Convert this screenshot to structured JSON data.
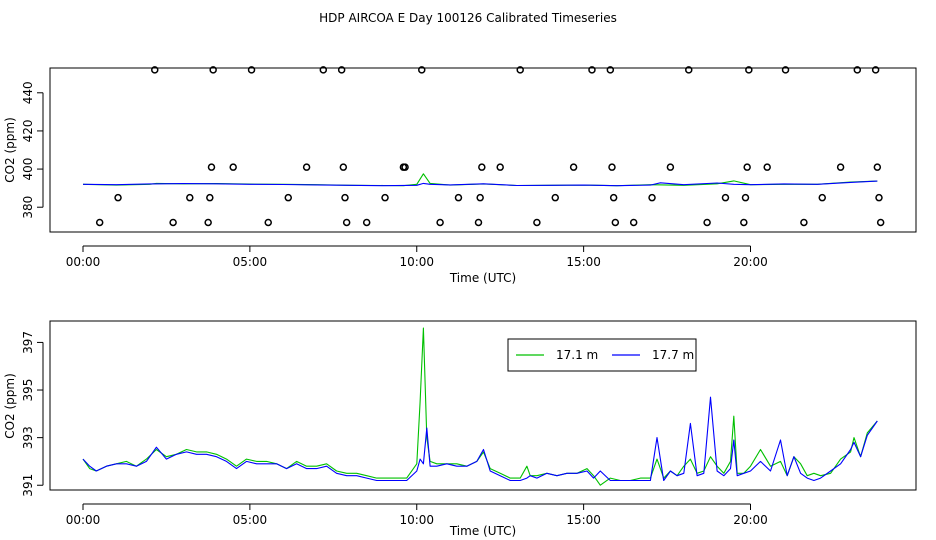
{
  "chart_data": [
    {
      "type": "line",
      "title": "HDP AIRCOA E  Day 100126  Calibrated Timeseries",
      "xlabel": "Time (UTC)",
      "ylabel": "CO2 (ppm)",
      "xlim": [
        0,
        24
      ],
      "ylim": [
        367,
        453
      ],
      "x_ticks": [
        0,
        5,
        10,
        15,
        20
      ],
      "x_tick_labels": [
        "00:00",
        "05:00",
        "10:00",
        "15:00",
        "20:00"
      ],
      "y_ticks": [
        380,
        400,
        420,
        440
      ],
      "y_tick_labels": [
        "380",
        "400",
        "420",
        "440"
      ],
      "grid": false,
      "legend": "none",
      "series": [
        {
          "color": "#00c000",
          "x": [
            0,
            1,
            2,
            2.2,
            3,
            4,
            5,
            6,
            7,
            8,
            9,
            9.6,
            10,
            10.2,
            10.4,
            11,
            12,
            13,
            14,
            15,
            16,
            17,
            18,
            19,
            19.5,
            20,
            21,
            22,
            23,
            23.8
          ],
          "y": [
            392,
            391.6,
            392,
            392.5,
            392.3,
            392.4,
            392.1,
            392,
            391.8,
            391.5,
            391.4,
            391.3,
            392,
            397.5,
            392.5,
            391.6,
            392.2,
            391.4,
            391.5,
            391.6,
            391.3,
            391.8,
            391.5,
            392.3,
            393.8,
            391.8,
            392,
            392,
            393.2,
            393.7
          ]
        },
        {
          "color": "#0000ff",
          "x": [
            0,
            1,
            2,
            3,
            4,
            5,
            6,
            7,
            8,
            9,
            10,
            10.2,
            10.4,
            11,
            12,
            13,
            14,
            15,
            16,
            17,
            17.3,
            18,
            19,
            19.5,
            20,
            21,
            22,
            23,
            23.8
          ],
          "y": [
            392,
            391.8,
            392.2,
            392.4,
            392.3,
            392,
            391.9,
            391.7,
            391.5,
            391.3,
            391.5,
            392.5,
            392,
            391.7,
            392.3,
            391.4,
            391.5,
            391.6,
            391.3,
            391.6,
            392.8,
            391.8,
            392.7,
            392,
            391.8,
            392.2,
            392,
            393,
            393.7
          ]
        }
      ],
      "points": {
        "x": [
          0.5,
          1.05,
          2.15,
          2.7,
          3.2,
          3.75,
          3.8,
          3.85,
          3.9,
          4.5,
          5.05,
          5.55,
          6.15,
          6.7,
          7.2,
          7.75,
          7.8,
          7.85,
          7.9,
          8.5,
          9.05,
          9.6,
          9.65,
          10.15,
          10.7,
          11.25,
          11.85,
          11.9,
          11.95,
          12.5,
          13.1,
          13.6,
          14.15,
          14.7,
          15.25,
          15.8,
          15.85,
          15.9,
          15.95,
          16.5,
          17.05,
          17.6,
          18.15,
          18.7,
          19.25,
          19.8,
          19.85,
          19.9,
          19.95,
          20.5,
          21.05,
          21.6,
          22.15,
          22.7,
          23.2,
          23.75,
          23.8,
          23.85,
          23.9
        ],
        "y": [
          372,
          385,
          452,
          372,
          385,
          372,
          385,
          401,
          452,
          401,
          452,
          372,
          385,
          401,
          452,
          452,
          401,
          385,
          372,
          372,
          385,
          401,
          401,
          452,
          372,
          385,
          372,
          385,
          401,
          401,
          452,
          372,
          385,
          401,
          452,
          452,
          401,
          385,
          372,
          372,
          385,
          401,
          452,
          372,
          385,
          372,
          385,
          401,
          452,
          401,
          452,
          372,
          385,
          401,
          452,
          452,
          401,
          385,
          372
        ]
      }
    },
    {
      "type": "line",
      "xlabel": "Time (UTC)",
      "ylabel": "CO2 (ppm)",
      "xlim": [
        0,
        24
      ],
      "ylim": [
        390.8,
        397.9
      ],
      "x_ticks": [
        0,
        5,
        10,
        15,
        20
      ],
      "x_tick_labels": [
        "00:00",
        "05:00",
        "10:00",
        "15:00",
        "20:00"
      ],
      "y_ticks": [
        391,
        393,
        395,
        397
      ],
      "y_tick_labels": [
        "391",
        "393",
        "395",
        "397"
      ],
      "grid": false,
      "legend": "top-center",
      "series": [
        {
          "name": "17.1 m",
          "color": "#00c000",
          "x": [
            0,
            0.2,
            0.4,
            0.7,
            1,
            1.3,
            1.6,
            1.9,
            2.2,
            2.5,
            2.8,
            3.1,
            3.4,
            3.7,
            4,
            4.3,
            4.6,
            4.9,
            5.2,
            5.5,
            5.8,
            6.1,
            6.4,
            6.7,
            7,
            7.3,
            7.6,
            7.9,
            8.2,
            8.5,
            8.8,
            9.1,
            9.4,
            9.7,
            10,
            10.1,
            10.2,
            10.3,
            10.4,
            10.6,
            10.9,
            11.2,
            11.5,
            11.8,
            12,
            12.2,
            12.5,
            12.8,
            13.1,
            13.3,
            13.4,
            13.6,
            13.9,
            14.2,
            14.5,
            14.8,
            15.1,
            15.3,
            15.5,
            15.8,
            16.1,
            16.4,
            16.7,
            17,
            17.2,
            17.4,
            17.6,
            17.8,
            18,
            18.2,
            18.4,
            18.6,
            18.8,
            19,
            19.2,
            19.4,
            19.5,
            19.6,
            19.8,
            20,
            20.3,
            20.6,
            20.9,
            21.1,
            21.3,
            21.5,
            21.7,
            21.9,
            22.1,
            22.4,
            22.7,
            23,
            23.1,
            23.3,
            23.5,
            23.8
          ],
          "y": [
            392.1,
            391.7,
            391.6,
            391.8,
            391.9,
            392,
            391.8,
            392.1,
            392.5,
            392.2,
            392.3,
            392.5,
            392.4,
            392.4,
            392.3,
            392.1,
            391.8,
            392.1,
            392,
            392,
            391.9,
            391.7,
            392,
            391.8,
            391.8,
            391.9,
            391.6,
            391.5,
            391.5,
            391.4,
            391.3,
            391.3,
            391.3,
            391.3,
            391.9,
            394.5,
            397.6,
            393,
            392,
            391.9,
            391.9,
            391.9,
            391.8,
            392,
            392.4,
            391.7,
            391.5,
            391.3,
            391.3,
            391.8,
            391.4,
            391.4,
            391.5,
            391.4,
            391.5,
            391.5,
            391.7,
            391.4,
            391,
            391.3,
            391.2,
            391.2,
            391.3,
            391.3,
            392.1,
            391.3,
            391.6,
            391.4,
            391.8,
            392.1,
            391.5,
            391.6,
            392.2,
            391.8,
            391.5,
            392,
            393.9,
            391.5,
            391.5,
            391.8,
            392.5,
            391.8,
            392,
            391.4,
            392.2,
            391.9,
            391.4,
            391.5,
            391.4,
            391.5,
            392.1,
            392.4,
            393,
            392.2,
            393.2,
            393.7
          ]
        },
        {
          "name": "17.7 m",
          "color": "#0000ff",
          "x": [
            0,
            0.2,
            0.4,
            0.7,
            1,
            1.3,
            1.6,
            1.9,
            2.2,
            2.5,
            2.8,
            3.1,
            3.4,
            3.7,
            4,
            4.3,
            4.6,
            4.9,
            5.2,
            5.5,
            5.8,
            6.1,
            6.4,
            6.7,
            7,
            7.3,
            7.6,
            7.9,
            8.2,
            8.5,
            8.8,
            9.1,
            9.4,
            9.7,
            10,
            10.1,
            10.2,
            10.3,
            10.4,
            10.6,
            10.9,
            11.2,
            11.5,
            11.8,
            12,
            12.2,
            12.5,
            12.8,
            13.1,
            13.3,
            13.4,
            13.6,
            13.9,
            14.2,
            14.5,
            14.8,
            15.1,
            15.3,
            15.5,
            15.8,
            16.1,
            16.4,
            16.7,
            17,
            17.2,
            17.4,
            17.6,
            17.8,
            18,
            18.2,
            18.4,
            18.6,
            18.8,
            19,
            19.2,
            19.4,
            19.5,
            19.6,
            19.8,
            20,
            20.3,
            20.6,
            20.9,
            21.1,
            21.3,
            21.5,
            21.7,
            21.9,
            22.1,
            22.4,
            22.7,
            23,
            23.1,
            23.3,
            23.5,
            23.8
          ],
          "y": [
            392.1,
            391.8,
            391.6,
            391.8,
            391.9,
            391.9,
            391.8,
            392,
            392.6,
            392.1,
            392.3,
            392.4,
            392.3,
            392.3,
            392.2,
            392,
            391.7,
            392,
            391.9,
            391.9,
            391.9,
            391.7,
            391.9,
            391.7,
            391.7,
            391.8,
            391.5,
            391.4,
            391.4,
            391.3,
            391.2,
            391.2,
            391.2,
            391.2,
            391.6,
            392.1,
            391.9,
            393.4,
            391.8,
            391.8,
            391.9,
            391.8,
            391.8,
            392,
            392.5,
            391.6,
            391.4,
            391.2,
            391.2,
            391.3,
            391.4,
            391.3,
            391.5,
            391.4,
            391.5,
            391.5,
            391.6,
            391.3,
            391.6,
            391.2,
            391.2,
            391.2,
            391.2,
            391.2,
            393,
            391.2,
            391.6,
            391.4,
            391.5,
            393.6,
            391.4,
            391.5,
            394.7,
            391.6,
            391.4,
            391.7,
            392.9,
            391.4,
            391.5,
            391.6,
            392,
            391.6,
            392.9,
            391.4,
            392.2,
            391.5,
            391.3,
            391.2,
            391.3,
            391.6,
            391.9,
            392.5,
            392.8,
            392.2,
            393.1,
            393.7
          ]
        }
      ]
    }
  ]
}
